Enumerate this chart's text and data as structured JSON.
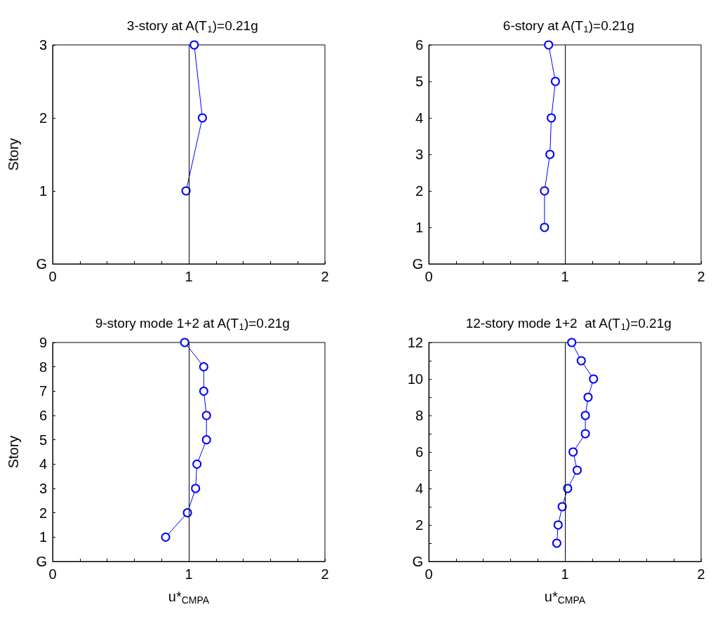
{
  "chart_data": [
    {
      "type": "line",
      "title": "3-story at A(T$_{1}$)=0.21g",
      "ylabel": "Story",
      "marker": "circle",
      "line_style": "solid",
      "grid": false,
      "series": [
        {
          "color": "#0000ff",
          "x": [
            0.98,
            1.1,
            1.04
          ],
          "values": [
            1,
            2,
            3
          ]
        }
      ],
      "xlim": [
        0,
        2
      ],
      "xticks": [
        0,
        {
          "value": 0.2,
          "label": null
        },
        {
          "value": 0.4,
          "label": null
        },
        {
          "value": 0.6,
          "label": null
        },
        {
          "value": 0.8,
          "label": null
        },
        1,
        {
          "value": 1.2,
          "label": null
        },
        {
          "value": 1.4,
          "label": null
        },
        {
          "value": 1.6,
          "label": null
        },
        {
          "value": 1.8,
          "label": null
        },
        2
      ],
      "ylim": [
        0,
        3
      ],
      "yticks": [
        {
          "value": 0,
          "label": "G"
        },
        1,
        2,
        3
      ],
      "ref_lines": [
        {
          "axis": "x",
          "value": 1,
          "color": "#000000"
        }
      ]
    },
    {
      "type": "line",
      "title": "6-story at A(T$_{1}$)=0.21g",
      "marker": "circle",
      "line_style": "solid",
      "grid": false,
      "series": [
        {
          "color": "#0000ff",
          "x": [
            0.85,
            0.85,
            0.89,
            0.9,
            0.93,
            0.88
          ],
          "values": [
            1,
            2,
            3,
            4,
            5,
            6
          ]
        }
      ],
      "xlim": [
        0,
        2
      ],
      "xticks": [
        0,
        {
          "value": 0.2,
          "label": null
        },
        {
          "value": 0.4,
          "label": null
        },
        {
          "value": 0.6,
          "label": null
        },
        {
          "value": 0.8,
          "label": null
        },
        1,
        {
          "value": 1.2,
          "label": null
        },
        {
          "value": 1.4,
          "label": null
        },
        {
          "value": 1.6,
          "label": null
        },
        {
          "value": 1.8,
          "label": null
        },
        2
      ],
      "ylim": [
        0,
        6
      ],
      "yticks": [
        {
          "value": 0,
          "label": "G"
        },
        1,
        2,
        3,
        4,
        5,
        6
      ],
      "ref_lines": [
        {
          "axis": "x",
          "value": 1,
          "color": "#000000"
        }
      ]
    },
    {
      "type": "line",
      "title": "9-story mode 1+2 at A(T$_{1}$)=0.21g",
      "xlabel": "u*$_{CMPA}$",
      "ylabel": "Story",
      "marker": "circle",
      "line_style": "solid",
      "grid": false,
      "series": [
        {
          "color": "#0000ff",
          "x": [
            0.83,
            0.99,
            1.05,
            1.06,
            1.13,
            1.13,
            1.11,
            1.11,
            0.97
          ],
          "values": [
            1,
            2,
            3,
            4,
            5,
            6,
            7,
            8,
            9
          ]
        }
      ],
      "xlim": [
        0,
        2
      ],
      "xticks": [
        0,
        {
          "value": 0.2,
          "label": null
        },
        {
          "value": 0.4,
          "label": null
        },
        {
          "value": 0.6,
          "label": null
        },
        {
          "value": 0.8,
          "label": null
        },
        1,
        {
          "value": 1.2,
          "label": null
        },
        {
          "value": 1.4,
          "label": null
        },
        {
          "value": 1.6,
          "label": null
        },
        {
          "value": 1.8,
          "label": null
        },
        2
      ],
      "ylim": [
        0,
        9
      ],
      "yticks": [
        {
          "value": 0,
          "label": "G"
        },
        1,
        2,
        3,
        4,
        5,
        6,
        7,
        8,
        9
      ],
      "ref_lines": [
        {
          "axis": "x",
          "value": 1,
          "color": "#000000"
        }
      ]
    },
    {
      "type": "line",
      "title": "12-story mode 1+2  at A(T$_{1}$)=0.21g",
      "xlabel": "u*$_{CMPA}$",
      "marker": "circle",
      "line_style": "solid",
      "grid": false,
      "series": [
        {
          "color": "#0000ff",
          "x": [
            0.94,
            0.95,
            0.98,
            1.02,
            1.09,
            1.06,
            1.15,
            1.15,
            1.17,
            1.21,
            1.12,
            1.05
          ],
          "values": [
            1,
            2,
            3,
            4,
            5,
            6,
            7,
            8,
            9,
            10,
            11,
            12
          ]
        }
      ],
      "xlim": [
        0,
        2
      ],
      "xticks": [
        0,
        {
          "value": 0.2,
          "label": null
        },
        {
          "value": 0.4,
          "label": null
        },
        {
          "value": 0.6,
          "label": null
        },
        {
          "value": 0.8,
          "label": null
        },
        1,
        {
          "value": 1.2,
          "label": null
        },
        {
          "value": 1.4,
          "label": null
        },
        {
          "value": 1.6,
          "label": null
        },
        {
          "value": 1.8,
          "label": null
        },
        2
      ],
      "ylim": [
        0,
        12
      ],
      "yticks": [
        {
          "value": 0,
          "label": "G"
        },
        {
          "value": 1,
          "label": null
        },
        2,
        {
          "value": 3,
          "label": null
        },
        4,
        {
          "value": 5,
          "label": null
        },
        6,
        {
          "value": 7,
          "label": null
        },
        8,
        {
          "value": 9,
          "label": null
        },
        10,
        {
          "value": 11,
          "label": null
        },
        12
      ],
      "ref_lines": [
        {
          "axis": "x",
          "value": 1,
          "color": "#000000"
        }
      ]
    }
  ]
}
